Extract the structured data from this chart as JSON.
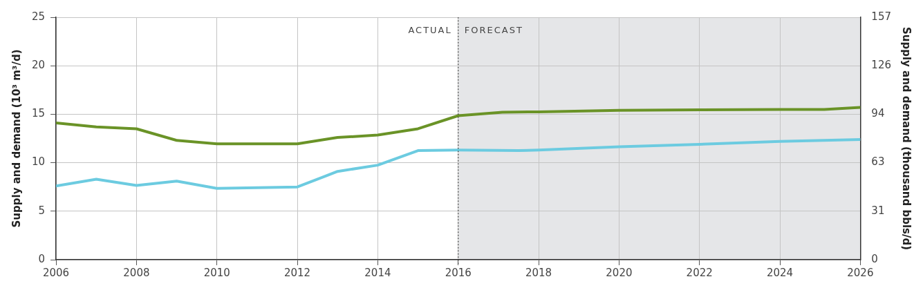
{
  "chart_data": {
    "type": "line",
    "x": [
      2006,
      2007,
      2008,
      2009,
      2010,
      2012,
      2013,
      2014,
      2015,
      2016,
      2017.1,
      2018,
      2020,
      2022,
      2024,
      2025.1,
      2026
    ],
    "series": [
      {
        "color": "#6a9327",
        "values": [
          14.1,
          13.7,
          13.5,
          12.3,
          11.95,
          11.95,
          12.6,
          12.85,
          13.5,
          14.85,
          15.2,
          15.25,
          15.4,
          15.45,
          15.5,
          15.5,
          15.7
        ]
      },
      {
        "color": "#6ccbe0",
        "x": [
          2006,
          2007,
          2008,
          2009,
          2010,
          2012,
          2013,
          2014,
          2015,
          2016,
          2017.5,
          2018,
          2020,
          2022,
          2024,
          2026
        ],
        "values": [
          7.6,
          8.3,
          7.65,
          8.1,
          7.35,
          7.5,
          9.1,
          9.75,
          11.25,
          11.3,
          11.25,
          11.3,
          11.65,
          11.9,
          12.2,
          12.4
        ]
      }
    ],
    "ylabel": "Supply and demand (10³ m³/d)",
    "y2label": "Supply and demand (thousand bbls/d)",
    "xlim": [
      2006,
      2026
    ],
    "xticks": [
      2006,
      2008,
      2010,
      2012,
      2014,
      2016,
      2018,
      2020,
      2022,
      2024,
      2026
    ],
    "ylim": [
      0,
      25
    ],
    "yticks": [
      0,
      5,
      10,
      15,
      20,
      25
    ],
    "y2lim": [
      0,
      157.25
    ],
    "y2ticks": [
      0,
      {
        "value": 31.45,
        "label": "31"
      },
      {
        "value": 62.9,
        "label": "63"
      },
      {
        "value": 94.35,
        "label": "94"
      },
      {
        "value": 125.8,
        "label": "126"
      },
      {
        "value": 157.25,
        "label": "157"
      }
    ],
    "ref_lines": [
      {
        "axis": "x",
        "value": 2016,
        "label": "ACTUAL",
        "line_style": "dotted",
        "color": "#333333"
      }
    ],
    "bands": [
      {
        "axis": "x",
        "from": 2016,
        "to": 2026,
        "label": "FORECAST",
        "color": "#e5e6e8"
      }
    ],
    "grid": true,
    "legend": false,
    "marker": "none",
    "line_style": "solid"
  }
}
